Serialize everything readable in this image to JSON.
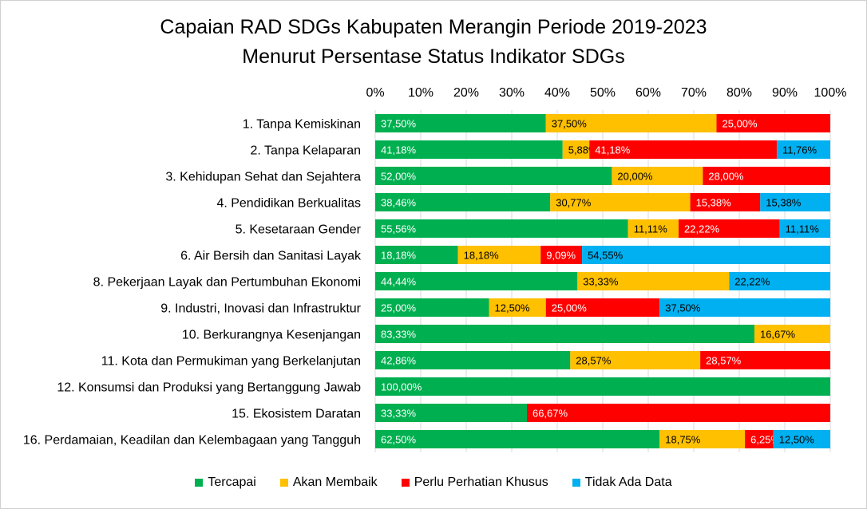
{
  "chart_data": {
    "type": "bar",
    "orientation": "horizontal",
    "stacked": "percent",
    "title": "Capaian RAD SDGs Kabupaten Merangin Periode 2019-2023",
    "subtitle": "Menurut Persentase Status Indikator SDGs",
    "xlim": [
      0,
      100
    ],
    "x_ticks": [
      "0%",
      "10%",
      "20%",
      "30%",
      "40%",
      "50%",
      "60%",
      "70%",
      "80%",
      "90%",
      "100%"
    ],
    "legend_position": "bottom",
    "categories": [
      "1. Tanpa Kemiskinan",
      "2. Tanpa Kelaparan",
      "3. Kehidupan Sehat dan Sejahtera",
      "4. Pendidikan Berkualitas",
      "5. Kesetaraan Gender",
      "6. Air Bersih dan Sanitasi Layak",
      "8. Pekerjaan Layak dan Pertumbuhan Ekonomi",
      "9. Industri, Inovasi dan Infrastruktur",
      "10. Berkurangnya Kesenjangan",
      "11. Kota dan Permukiman yang Berkelanjutan",
      "12. Konsumsi dan Produksi yang Bertanggung Jawab",
      "15. Ekosistem Daratan",
      "16. Perdamaian, Keadilan dan Kelembagaan yang Tangguh"
    ],
    "series": [
      {
        "name": "Tercapai",
        "color": "#00b050",
        "values": [
          37.5,
          41.18,
          52.0,
          38.46,
          55.56,
          18.18,
          44.44,
          25.0,
          83.33,
          42.86,
          100.0,
          33.33,
          62.5
        ],
        "labels": [
          "37,50%",
          "41,18%",
          "52,00%",
          "38,46%",
          "55,56%",
          "18,18%",
          "44,44%",
          "25,00%",
          "83,33%",
          "42,86%",
          "100,00%",
          "33,33%",
          "62,50%"
        ]
      },
      {
        "name": "Akan Membaik",
        "color": "#ffc000",
        "values": [
          37.5,
          5.88,
          20.0,
          30.77,
          11.11,
          18.18,
          33.33,
          12.5,
          16.67,
          28.57,
          0,
          0,
          18.75
        ],
        "labels": [
          "37,50%",
          "5,88%",
          "20,00%",
          "30,77%",
          "11,11%",
          "18,18%",
          "33,33%",
          "12,50%",
          "16,67%",
          "28,57%",
          "",
          "",
          "18,75%"
        ]
      },
      {
        "name": "Perlu Perhatian Khusus",
        "color": "#ff0000",
        "values": [
          25.0,
          41.18,
          28.0,
          15.38,
          22.22,
          9.09,
          0,
          25.0,
          0,
          28.57,
          0,
          66.67,
          6.25
        ],
        "labels": [
          "25,00%",
          "41,18%",
          "28,00%",
          "15,38%",
          "22,22%",
          "9,09%",
          "",
          "25,00%",
          "",
          "28,57%",
          "",
          "66,67%",
          "6,25%"
        ]
      },
      {
        "name": "Tidak Ada Data",
        "color": "#00b0f0",
        "values": [
          0,
          11.76,
          0,
          15.38,
          11.11,
          54.55,
          22.22,
          37.5,
          0,
          0,
          0,
          0,
          12.5
        ],
        "labels": [
          "",
          "11,76%",
          "",
          "15,38%",
          "11,11%",
          "54,55%",
          "22,22%",
          "37,50%",
          "",
          "",
          "",
          "",
          "12,50%"
        ]
      }
    ]
  }
}
